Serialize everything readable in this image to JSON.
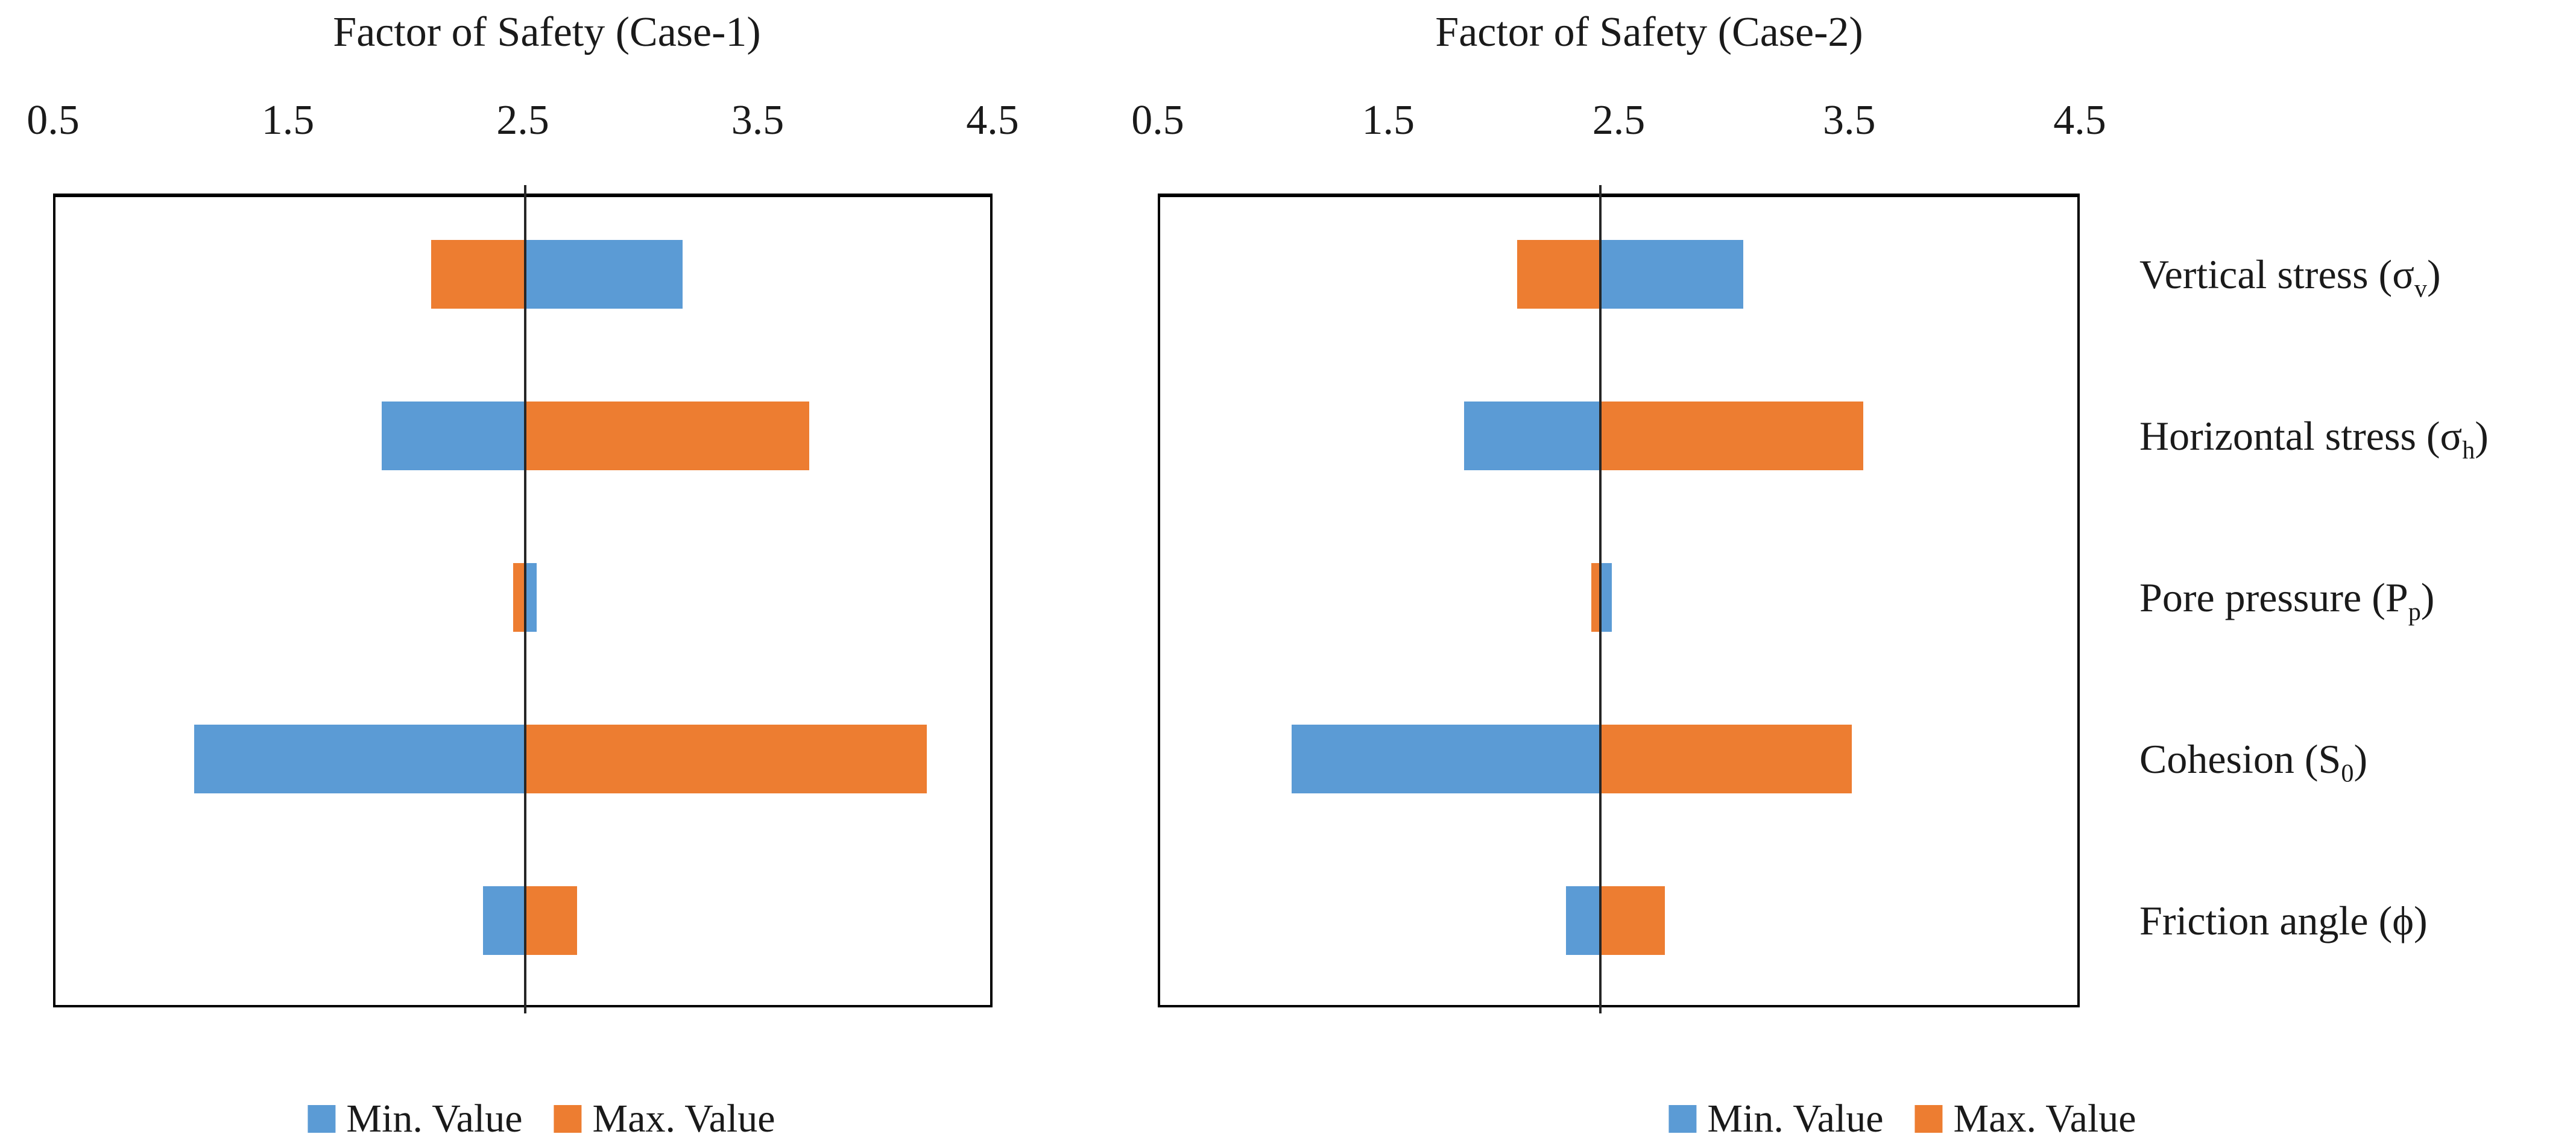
{
  "colors": {
    "min_value": "#5B9BD5",
    "max_value": "#ED7D31",
    "baseline_line": "#262626",
    "plot_border": "#000000",
    "text": "#1a1a1a"
  },
  "axis": {
    "min": 0.5,
    "max": 4.5,
    "tick_labels": [
      "0.5",
      "1.5",
      "2.5",
      "3.5",
      "4.5"
    ]
  },
  "legend": {
    "min_label": "Min. Value",
    "max_label": "Max. Value"
  },
  "category_labels": [
    {
      "pre": "Vertical stress (σ",
      "sub": "v",
      "post": ")"
    },
    {
      "pre": "Horizontal stress (σ",
      "sub": "h",
      "post": ")"
    },
    {
      "pre": "Pore pressure (P",
      "sub": "p",
      "post": ")"
    },
    {
      "pre": "Cohesion (S",
      "sub": "0",
      "post": ")"
    },
    {
      "pre": "Friction angle (ϕ",
      "sub": "",
      "post": ")"
    }
  ],
  "chart_data": [
    {
      "type": "bar",
      "subtype": "tornado",
      "title": "Factor of Safety (Case-1)",
      "xlabel": "Factor of Safety",
      "xlim": [
        0.5,
        4.5
      ],
      "x_ticks": [
        0.5,
        1.5,
        2.5,
        3.5,
        4.5
      ],
      "grid": false,
      "legend_position": "bottom",
      "baseline": 2.51,
      "categories": [
        "Vertical stress (σv)",
        "Horizontal stress (σh)",
        "Pore pressure (Pp)",
        "Cohesion (S0)",
        "Friction angle (ϕ)"
      ],
      "series": [
        {
          "name": "Min. Value",
          "values": [
            3.18,
            1.9,
            2.56,
            1.1,
            2.33
          ]
        },
        {
          "name": "Max. Value",
          "values": [
            2.11,
            3.72,
            2.46,
            4.22,
            2.73
          ]
        }
      ]
    },
    {
      "type": "bar",
      "subtype": "tornado",
      "title": "Factor of Safety (Case-2)",
      "xlabel": "Factor of Safety",
      "xlim": [
        0.5,
        4.5
      ],
      "x_ticks": [
        0.5,
        1.5,
        2.5,
        3.5,
        4.5
      ],
      "grid": false,
      "legend_position": "bottom",
      "baseline": 2.42,
      "categories": [
        "Vertical stress (σv)",
        "Horizontal stress (σh)",
        "Pore pressure (Pp)",
        "Cohesion (S0)",
        "Friction angle (ϕ)"
      ],
      "series": [
        {
          "name": "Min. Value",
          "values": [
            3.04,
            1.83,
            2.47,
            1.08,
            2.27
          ]
        },
        {
          "name": "Max. Value",
          "values": [
            2.06,
            3.56,
            2.38,
            3.51,
            2.7
          ]
        }
      ]
    }
  ]
}
